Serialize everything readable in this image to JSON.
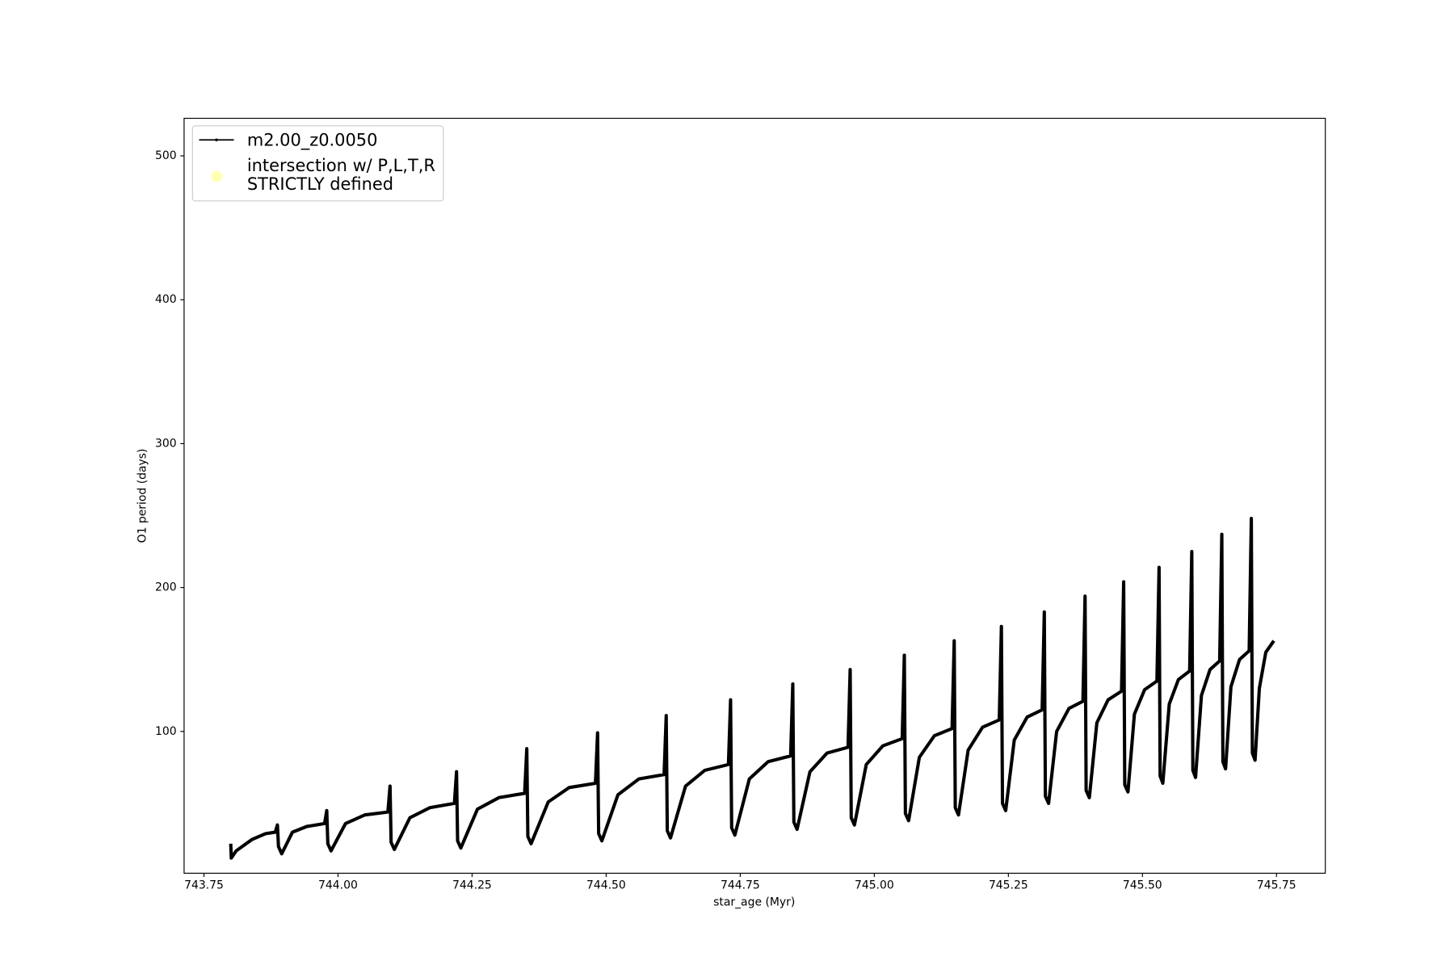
{
  "chart_data": {
    "type": "line",
    "xlabel": "star_age (Myr)",
    "ylabel": "O1 period (days)",
    "xlim": [
      743.713,
      745.841
    ],
    "ylim": [
      1.47,
      526.1
    ],
    "xticks": [
      743.75,
      {
        "value": 744.0,
        "label": "744.00"
      },
      744.25,
      {
        "value": 744.5,
        "label": "744.50"
      },
      744.75,
      {
        "value": 745.0,
        "label": "745.00"
      },
      745.25,
      {
        "value": 745.5,
        "label": "745.50"
      },
      745.75
    ],
    "yticks": [
      100,
      200,
      300,
      400,
      500
    ],
    "grid": false,
    "legend_position": "upper-left",
    "series": [
      {
        "name": "m2.00_z0.0050",
        "color": "#000000",
        "x": [
          743.8,
          743.801,
          743.81,
          743.84,
          743.865,
          743.883,
          743.887,
          743.889,
          743.895,
          743.915,
          743.942,
          743.975,
          743.979,
          743.981,
          743.987,
          744.014,
          744.05,
          744.093,
          744.097,
          744.099,
          744.105,
          744.134,
          744.171,
          744.217,
          744.221,
          744.223,
          744.229,
          744.26,
          744.3,
          744.348,
          744.352,
          744.354,
          744.36,
          744.392,
          744.431,
          744.48,
          744.484,
          744.486,
          744.492,
          744.522,
          744.561,
          744.608,
          744.612,
          744.614,
          744.62,
          744.648,
          744.684,
          744.728,
          744.732,
          744.734,
          744.74,
          744.767,
          744.802,
          744.844,
          744.848,
          744.85,
          744.856,
          744.88,
          744.912,
          744.951,
          744.955,
          744.957,
          744.963,
          744.985,
          745.016,
          745.052,
          745.056,
          745.058,
          745.064,
          745.084,
          745.112,
          745.145,
          745.149,
          745.151,
          745.157,
          745.175,
          745.202,
          745.233,
          745.237,
          745.239,
          745.245,
          745.261,
          745.285,
          745.313,
          745.317,
          745.319,
          745.325,
          745.34,
          745.363,
          745.389,
          745.393,
          745.395,
          745.401,
          745.415,
          745.436,
          745.461,
          745.465,
          745.467,
          745.473,
          745.485,
          745.504,
          745.527,
          745.531,
          745.533,
          745.538,
          745.55,
          745.567,
          745.588,
          745.592,
          745.594,
          745.599,
          745.61,
          745.626,
          745.644,
          745.648,
          745.65,
          745.655,
          745.665,
          745.681,
          745.699,
          745.703,
          745.705,
          745.71,
          745.718,
          745.73,
          745.745
        ],
        "values": [
          22,
          12,
          17,
          25,
          29,
          30,
          35,
          20,
          15,
          30,
          34,
          36,
          45,
          22,
          17,
          36,
          42,
          44,
          62,
          23,
          18,
          40,
          47,
          50,
          72,
          24,
          19,
          46,
          54,
          57,
          88,
          27,
          22,
          51,
          61,
          64,
          99,
          29,
          24,
          56,
          67,
          70,
          111,
          31,
          26,
          62,
          73,
          77,
          122,
          33,
          28,
          67,
          79,
          83,
          133,
          37,
          32,
          72,
          85,
          89,
          143,
          40,
          35,
          77,
          90,
          95,
          153,
          43,
          38,
          82,
          97,
          102,
          163,
          47,
          42,
          87,
          103,
          108,
          173,
          50,
          45,
          94,
          110,
          115,
          183,
          55,
          50,
          100,
          116,
          121,
          194,
          59,
          54,
          106,
          122,
          128,
          204,
          63,
          58,
          112,
          129,
          135,
          214,
          69,
          64,
          119,
          136,
          142,
          225,
          73,
          68,
          125,
          143,
          149,
          237,
          79,
          74,
          131,
          150,
          156,
          248,
          85,
          80,
          130,
          155,
          163
        ]
      }
    ],
    "extra_legend": {
      "name": "intersection w/ P,L,T,R\nSTRICTLY defined",
      "color": "#ffffb3"
    }
  }
}
